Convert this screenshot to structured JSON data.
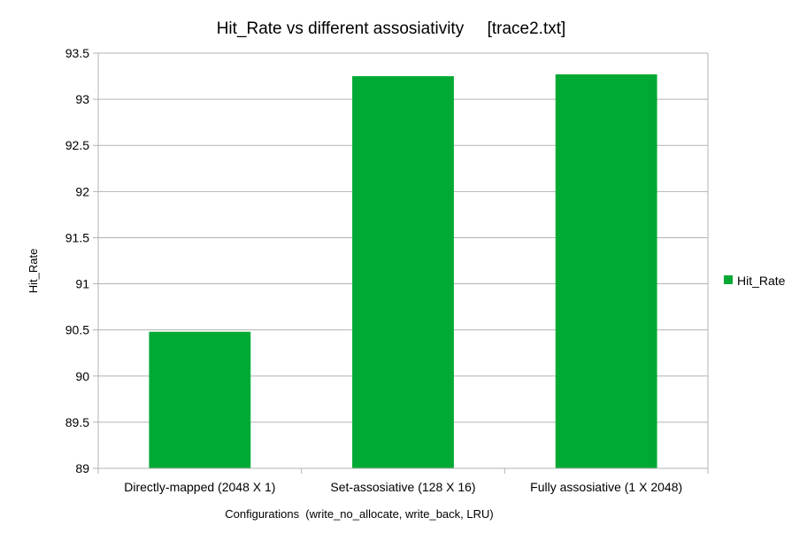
{
  "chart_data": {
    "type": "bar",
    "title": "Hit_Rate vs different assosiativity     [trace2.txt]",
    "xlabel": "Configurations  (write_no_allocate, write_back, LRU)",
    "ylabel": "Hit_Rate",
    "categories": [
      "Directly-mapped (2048 X 1)",
      "Set-assosiative (128 X 16)",
      "Fully assosiative (1 X 2048)"
    ],
    "series": [
      {
        "name": "Hit_Rate",
        "values": [
          90.48,
          93.25,
          93.27
        ],
        "color": "#00a933"
      }
    ],
    "ylim": [
      89,
      93.5
    ],
    "yticks": [
      "89",
      "89.5",
      "90",
      "90.5",
      "91",
      "91.5",
      "92",
      "92.5",
      "93",
      "93.5"
    ],
    "grid": true,
    "legend_position": "right"
  }
}
